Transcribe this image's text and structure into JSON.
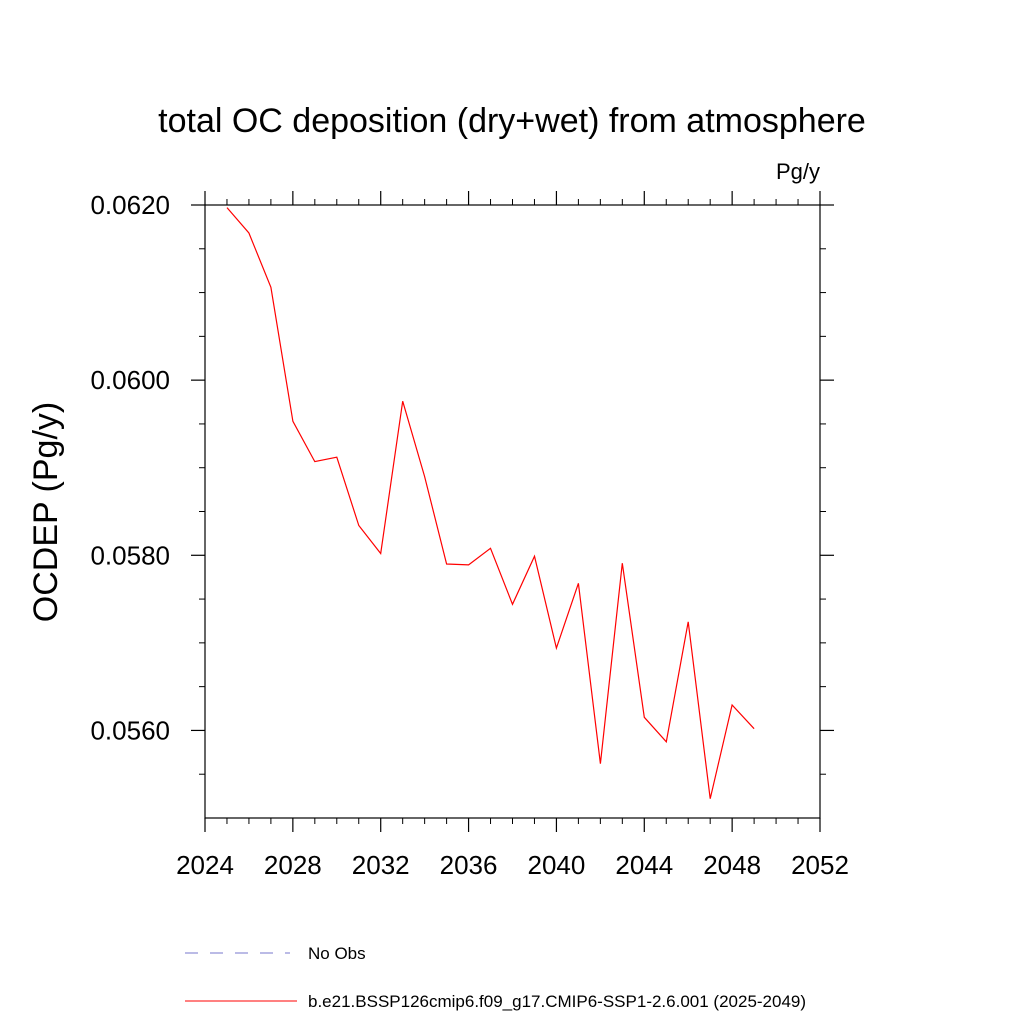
{
  "chart_data": {
    "type": "line",
    "title": "total OC deposition (dry+wet) from atmosphere",
    "units": "Pg/y",
    "xlabel": "",
    "ylabel": "OCDEP  (Pg/y)",
    "xlim": [
      2024,
      2052
    ],
    "ylim": [
      0.055,
      0.062
    ],
    "x_ticks": [
      2024,
      2028,
      2032,
      2036,
      2040,
      2044,
      2048,
      2052
    ],
    "x_tick_labels": [
      "2024",
      "2028",
      "2032",
      "2036",
      "2040",
      "2044",
      "2048",
      "2052"
    ],
    "y_ticks": [
      0.056,
      0.058,
      0.06,
      0.062
    ],
    "y_tick_labels": [
      "0.0560",
      "0.0580",
      "0.0600",
      "0.0620"
    ],
    "grid": false,
    "legend_position": "bottom",
    "series": [
      {
        "name": "b.e21.BSSP126cmip6.f09_g17.CMIP6-SSP1-2.6.001 (2025-2049)",
        "color": "#ff0000",
        "style": "solid",
        "x": [
          2025,
          2026,
          2027,
          2028,
          2029,
          2030,
          2031,
          2032,
          2033,
          2034,
          2035,
          2036,
          2037,
          2038,
          2039,
          2040,
          2041,
          2042,
          2043,
          2044,
          2045,
          2046,
          2047,
          2048,
          2049
        ],
        "values": [
          0.06197,
          0.06168,
          0.06106,
          0.05953,
          0.05907,
          0.05912,
          0.05834,
          0.05802,
          0.05976,
          0.0589,
          0.0579,
          0.05789,
          0.05808,
          0.05744,
          0.05799,
          0.05694,
          0.05768,
          0.05562,
          0.05791,
          0.05615,
          0.05587,
          0.05724,
          0.05522,
          0.05629,
          0.05602
        ]
      }
    ],
    "legend": [
      {
        "label": "No Obs",
        "color": "#7777cc",
        "style": "dashed"
      },
      {
        "label": "b.e21.BSSP126cmip6.f09_g17.CMIP6-SSP1-2.6.001 (2025-2049)",
        "color": "#ff0000",
        "style": "solid"
      }
    ]
  }
}
